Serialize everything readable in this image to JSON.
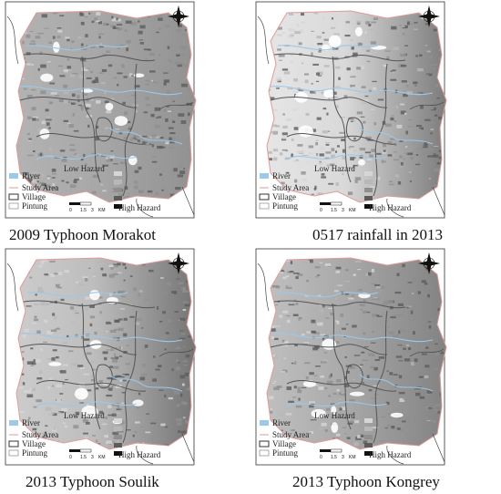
{
  "panels": [
    {
      "caption": "2009 Typhoon Morakot"
    },
    {
      "caption": "0517 rainfall in 2013"
    },
    {
      "caption": "2013 Typhoon Soulik"
    },
    {
      "caption": "2013 Typhoon Kongrey"
    }
  ],
  "legend": {
    "river": "River",
    "study_area": "Study Area",
    "village": "Village",
    "pintung": "Pintung",
    "low_hazard": "Low Hazard",
    "high_hazard": "High Hazard",
    "scale_labels": [
      "0",
      "1.5",
      "3",
      "KM"
    ]
  },
  "colors": {
    "river": "#9cc8ea",
    "study_area_line": "#e09a9a",
    "village_line": "#555555",
    "hazard_ramp": [
      "#d6d6d6",
      "#b8b8b8",
      "#8f8f8f",
      "#5c5c5c",
      "#111111"
    ]
  }
}
